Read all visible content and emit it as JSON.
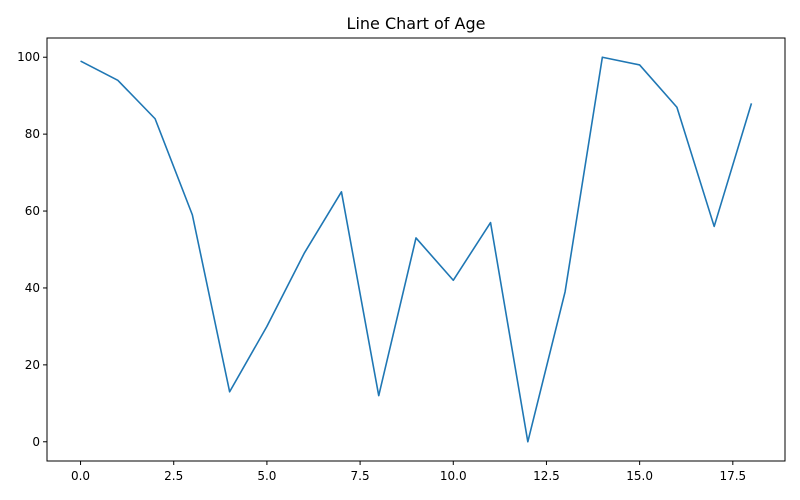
{
  "chart_data": {
    "type": "line",
    "title": "Line Chart of Age",
    "xlabel": "",
    "ylabel": "",
    "x": [
      0,
      1,
      2,
      3,
      4,
      5,
      6,
      7,
      8,
      9,
      10,
      11,
      12,
      13,
      14,
      15,
      16,
      17,
      18
    ],
    "series": [
      {
        "values": [
          99,
          94,
          84,
          59,
          13,
          30,
          49,
          65,
          12,
          53,
          42,
          57,
          0,
          39,
          100,
          98,
          87,
          56,
          88
        ],
        "color": "#1f77b4"
      }
    ],
    "xlim": [
      -0.9,
      18.9
    ],
    "ylim": [
      -5,
      105
    ],
    "xticks": [
      0.0,
      2.5,
      5.0,
      7.5,
      10.0,
      12.5,
      15.0,
      17.5
    ],
    "xtick_labels": [
      "0.0",
      "2.5",
      "5.0",
      "7.5",
      "10.0",
      "12.5",
      "15.0",
      "17.5"
    ],
    "yticks": [
      0,
      20,
      40,
      60,
      80,
      100
    ],
    "ytick_labels": [
      "0",
      "20",
      "40",
      "60",
      "80",
      "100"
    ],
    "grid": false,
    "legend": false
  }
}
